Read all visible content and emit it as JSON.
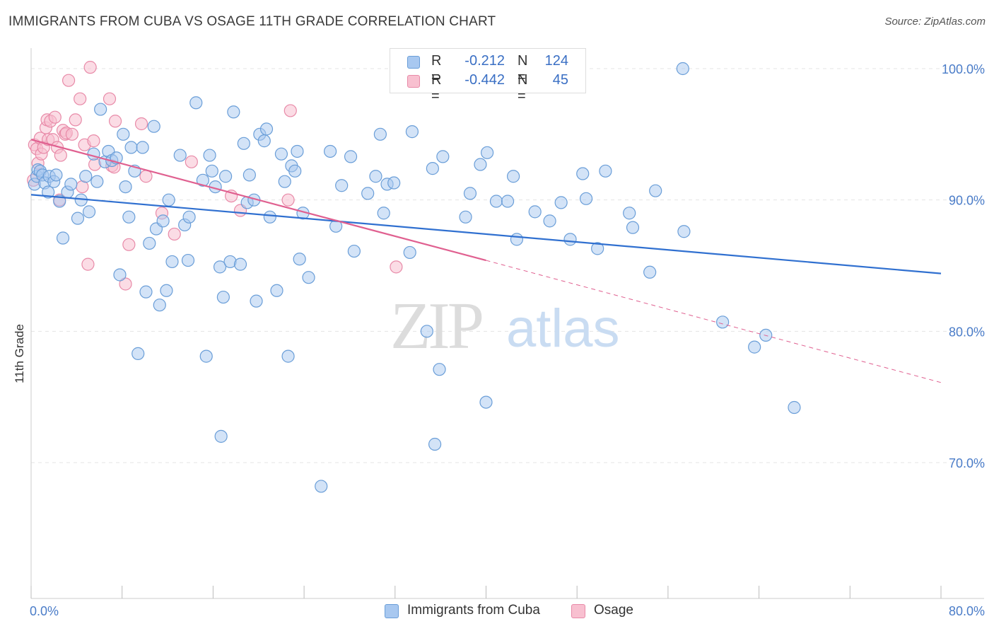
{
  "title": "IMMIGRANTS FROM CUBA VS OSAGE 11TH GRADE CORRELATION CHART",
  "source": "Source: ZipAtlas.com",
  "watermark": {
    "zip": "ZIP",
    "atlas": "atlas"
  },
  "legend_top": [
    {
      "r_label": "R =",
      "r_value": "-0.212",
      "n_label": "N =",
      "n_value": "124",
      "color": "#a8c8f0",
      "border": "#6a9ed8"
    },
    {
      "r_label": "R =",
      "r_value": "-0.442",
      "n_label": "N =",
      "n_value": "45",
      "color": "#f8c0d0",
      "border": "#e88aa8"
    }
  ],
  "legend_bottom": [
    {
      "label": "Immigrants from Cuba",
      "color": "#a8c8f0",
      "border": "#6a9ed8"
    },
    {
      "label": "Osage",
      "color": "#f8c0d0",
      "border": "#e88aa8"
    }
  ],
  "chart_data": {
    "type": "scatter",
    "title": "IMMIGRANTS FROM CUBA VS OSAGE 11TH GRADE CORRELATION CHART",
    "xlabel": "",
    "ylabel": "11th Grade",
    "xlim": [
      0,
      80
    ],
    "ylim": [
      60,
      100
    ],
    "x_tick_labels": [
      "0.0%",
      "80.0%"
    ],
    "y_ticks": [
      70,
      80,
      90,
      100
    ],
    "y_tick_labels": [
      "70.0%",
      "80.0%",
      "90.0%",
      "100.0%"
    ],
    "grid": true,
    "series": [
      {
        "name": "Immigrants from Cuba",
        "color": "#7aaae8",
        "trend": {
          "x": [
            0,
            80
          ],
          "y": [
            90.4,
            84.4
          ],
          "color": "#3070d0"
        },
        "points": [
          [
            0.3,
            91.2
          ],
          [
            0.5,
            91.8
          ],
          [
            0.6,
            92.3
          ],
          [
            0.8,
            92.2
          ],
          [
            1.0,
            91.9
          ],
          [
            1.2,
            91.3
          ],
          [
            1.5,
            90.6
          ],
          [
            1.6,
            91.8
          ],
          [
            2.0,
            91.4
          ],
          [
            2.2,
            91.9
          ],
          [
            2.5,
            89.9
          ],
          [
            2.8,
            87.1
          ],
          [
            3.2,
            90.6
          ],
          [
            3.5,
            91.2
          ],
          [
            4.1,
            88.6
          ],
          [
            4.4,
            90.0
          ],
          [
            4.8,
            91.8
          ],
          [
            5.1,
            89.1
          ],
          [
            5.5,
            93.5
          ],
          [
            5.8,
            91.4
          ],
          [
            6.1,
            96.9
          ],
          [
            6.5,
            92.9
          ],
          [
            6.8,
            93.7
          ],
          [
            7.1,
            93.0
          ],
          [
            7.5,
            93.2
          ],
          [
            7.8,
            84.3
          ],
          [
            8.1,
            95.0
          ],
          [
            8.3,
            91.0
          ],
          [
            8.6,
            88.7
          ],
          [
            8.8,
            94.0
          ],
          [
            9.1,
            92.2
          ],
          [
            9.4,
            78.3
          ],
          [
            9.8,
            94.0
          ],
          [
            10.1,
            83.0
          ],
          [
            10.4,
            86.7
          ],
          [
            10.8,
            95.6
          ],
          [
            11.0,
            87.8
          ],
          [
            11.3,
            82.0
          ],
          [
            11.6,
            88.4
          ],
          [
            11.9,
            83.1
          ],
          [
            12.1,
            90.0
          ],
          [
            12.4,
            85.3
          ],
          [
            13.1,
            93.4
          ],
          [
            13.5,
            88.1
          ],
          [
            13.8,
            85.4
          ],
          [
            13.9,
            88.7
          ],
          [
            14.5,
            97.4
          ],
          [
            15.1,
            91.5
          ],
          [
            15.4,
            78.1
          ],
          [
            15.7,
            93.4
          ],
          [
            15.9,
            92.2
          ],
          [
            16.2,
            91.0
          ],
          [
            16.6,
            84.9
          ],
          [
            16.9,
            82.6
          ],
          [
            17.1,
            91.8
          ],
          [
            17.5,
            85.3
          ],
          [
            17.8,
            96.7
          ],
          [
            18.4,
            85.1
          ],
          [
            18.7,
            94.3
          ],
          [
            19.0,
            89.8
          ],
          [
            19.2,
            91.9
          ],
          [
            19.6,
            90.0
          ],
          [
            19.8,
            82.3
          ],
          [
            20.1,
            95.0
          ],
          [
            20.5,
            94.5
          ],
          [
            20.7,
            95.4
          ],
          [
            21.0,
            88.7
          ],
          [
            21.6,
            83.1
          ],
          [
            22.0,
            93.5
          ],
          [
            22.3,
            91.4
          ],
          [
            22.6,
            78.1
          ],
          [
            22.9,
            92.6
          ],
          [
            23.2,
            92.2
          ],
          [
            23.4,
            93.7
          ],
          [
            23.6,
            85.5
          ],
          [
            23.9,
            89.0
          ],
          [
            24.4,
            84.1
          ],
          [
            25.5,
            68.2
          ],
          [
            26.3,
            93.7
          ],
          [
            26.8,
            88.0
          ],
          [
            27.3,
            91.1
          ],
          [
            28.1,
            93.3
          ],
          [
            28.4,
            86.1
          ],
          [
            29.6,
            90.5
          ],
          [
            30.3,
            91.8
          ],
          [
            30.7,
            95.0
          ],
          [
            31.0,
            89.0
          ],
          [
            31.3,
            91.2
          ],
          [
            31.9,
            91.3
          ],
          [
            33.3,
            86.0
          ],
          [
            33.5,
            95.2
          ],
          [
            34.8,
            80.0
          ],
          [
            35.3,
            92.4
          ],
          [
            35.5,
            71.4
          ],
          [
            35.9,
            77.1
          ],
          [
            36.2,
            93.3
          ],
          [
            38.2,
            88.7
          ],
          [
            38.6,
            90.5
          ],
          [
            39.5,
            92.7
          ],
          [
            40.0,
            74.6
          ],
          [
            40.1,
            93.6
          ],
          [
            40.9,
            89.9
          ],
          [
            41.9,
            89.9
          ],
          [
            42.4,
            91.8
          ],
          [
            42.7,
            87.0
          ],
          [
            44.3,
            89.1
          ],
          [
            45.6,
            88.4
          ],
          [
            46.6,
            89.8
          ],
          [
            47.4,
            87.0
          ],
          [
            48.5,
            92.0
          ],
          [
            48.8,
            90.1
          ],
          [
            49.8,
            86.3
          ],
          [
            50.5,
            92.2
          ],
          [
            52.6,
            89.0
          ],
          [
            52.9,
            87.9
          ],
          [
            54.4,
            84.5
          ],
          [
            54.9,
            90.7
          ],
          [
            57.3,
            100.0
          ],
          [
            57.4,
            87.6
          ],
          [
            60.8,
            80.7
          ],
          [
            63.6,
            78.8
          ],
          [
            64.6,
            79.7
          ],
          [
            67.1,
            74.2
          ],
          [
            16.7,
            72.0
          ]
        ]
      },
      {
        "name": "Osage",
        "color": "#f0a8c0",
        "trend": {
          "x": [
            0,
            40
          ],
          "y": [
            94.6,
            85.4
          ],
          "color": "#e06090",
          "dashed_to": [
            80,
            76.1
          ]
        },
        "points": [
          [
            0.3,
            94.2
          ],
          [
            0.5,
            93.9
          ],
          [
            0.6,
            92.8
          ],
          [
            0.8,
            94.7
          ],
          [
            0.9,
            93.5
          ],
          [
            1.1,
            94.0
          ],
          [
            1.3,
            95.5
          ],
          [
            1.4,
            96.1
          ],
          [
            1.5,
            94.6
          ],
          [
            1.7,
            96.0
          ],
          [
            1.9,
            94.6
          ],
          [
            2.1,
            96.3
          ],
          [
            2.3,
            94.0
          ],
          [
            2.5,
            90.0
          ],
          [
            2.6,
            93.4
          ],
          [
            2.8,
            95.3
          ],
          [
            3.0,
            95.0
          ],
          [
            3.1,
            95.1
          ],
          [
            3.3,
            99.1
          ],
          [
            3.6,
            95.0
          ],
          [
            3.9,
            96.1
          ],
          [
            4.3,
            97.7
          ],
          [
            4.5,
            91.0
          ],
          [
            4.7,
            94.2
          ],
          [
            5.0,
            85.1
          ],
          [
            5.2,
            100.1
          ],
          [
            5.5,
            94.5
          ],
          [
            5.6,
            92.7
          ],
          [
            6.9,
            97.7
          ],
          [
            7.1,
            92.6
          ],
          [
            7.4,
            96.0
          ],
          [
            8.3,
            83.6
          ],
          [
            8.6,
            86.6
          ],
          [
            9.7,
            95.8
          ],
          [
            10.1,
            91.8
          ],
          [
            11.5,
            89.0
          ],
          [
            12.6,
            87.4
          ],
          [
            14.1,
            92.9
          ],
          [
            17.6,
            90.3
          ],
          [
            18.4,
            89.2
          ],
          [
            22.6,
            90.0
          ],
          [
            22.8,
            96.8
          ],
          [
            32.1,
            84.9
          ],
          [
            0.2,
            91.5
          ],
          [
            7.3,
            92.5
          ]
        ]
      }
    ]
  }
}
